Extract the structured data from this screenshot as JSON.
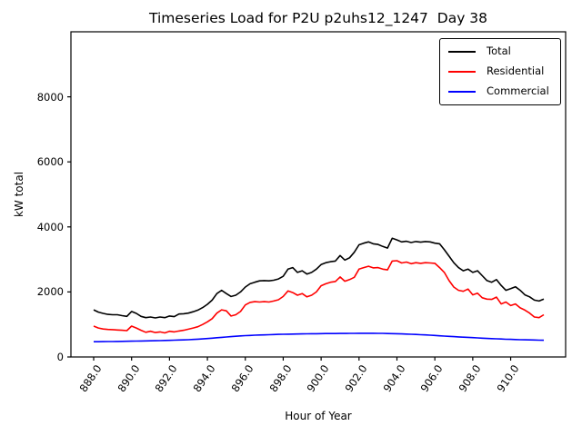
{
  "figure": {
    "background": "#ffffff"
  },
  "chart_data": {
    "type": "line",
    "title": "Timeseries Load for P2U p2uhs12_1247  Day 38",
    "xlabel": "Hour of Year",
    "ylabel": "kW total",
    "xlim": [
      886.8,
      912.9
    ],
    "ylim": [
      0,
      10000
    ],
    "grid": false,
    "xticks": {
      "values": [
        888,
        890,
        892,
        894,
        896,
        898,
        900,
        902,
        904,
        906,
        908,
        910
      ],
      "labels": [
        "888.0",
        "890.0",
        "892.0",
        "894.0",
        "896.0",
        "898.0",
        "900.0",
        "902.0",
        "904.0",
        "906.0",
        "908.0",
        "910.0"
      ],
      "rotation_deg": -56
    },
    "yticks": {
      "values": [
        0,
        2000,
        4000,
        6000,
        8000
      ],
      "labels": [
        "0",
        "2000",
        "4000",
        "6000",
        "8000"
      ]
    },
    "legend": {
      "position": "upper right",
      "frame": true
    },
    "x": [
      888,
      888.25,
      888.5,
      888.75,
      889,
      889.25,
      889.5,
      889.75,
      890,
      890.25,
      890.5,
      890.75,
      891,
      891.25,
      891.5,
      891.75,
      892,
      892.25,
      892.5,
      892.75,
      893,
      893.25,
      893.5,
      893.75,
      894,
      894.25,
      894.5,
      894.75,
      895,
      895.25,
      895.5,
      895.75,
      896,
      896.25,
      896.5,
      896.75,
      897,
      897.25,
      897.5,
      897.75,
      898,
      898.25,
      898.5,
      898.75,
      899,
      899.25,
      899.5,
      899.75,
      900,
      900.25,
      900.5,
      900.75,
      901,
      901.25,
      901.5,
      901.75,
      902,
      902.25,
      902.5,
      902.75,
      903,
      903.25,
      903.5,
      903.75,
      904,
      904.25,
      904.5,
      904.75,
      905,
      905.25,
      905.5,
      905.75,
      906,
      906.25,
      906.5,
      906.75,
      907,
      907.25,
      907.5,
      907.75,
      908,
      908.25,
      908.5,
      908.75,
      909,
      909.25,
      909.5,
      909.75,
      910,
      910.25,
      910.5,
      910.75,
      911,
      911.25,
      911.5,
      911.75
    ],
    "series": [
      {
        "name": "Total",
        "color": "#000000",
        "values": [
          1450,
          1380,
          1340,
          1310,
          1300,
          1300,
          1270,
          1250,
          1400,
          1340,
          1250,
          1210,
          1230,
          1200,
          1230,
          1210,
          1260,
          1240,
          1320,
          1330,
          1350,
          1390,
          1440,
          1520,
          1620,
          1750,
          1950,
          2050,
          1950,
          1860,
          1900,
          2000,
          2150,
          2250,
          2300,
          2340,
          2350,
          2340,
          2360,
          2400,
          2480,
          2700,
          2750,
          2600,
          2650,
          2550,
          2600,
          2700,
          2840,
          2900,
          2930,
          2950,
          3120,
          2980,
          3050,
          3220,
          3450,
          3500,
          3540,
          3480,
          3460,
          3400,
          3350,
          3650,
          3600,
          3540,
          3560,
          3520,
          3550,
          3530,
          3550,
          3540,
          3500,
          3480,
          3300,
          3100,
          2900,
          2750,
          2650,
          2700,
          2600,
          2650,
          2500,
          2350,
          2300,
          2380,
          2200,
          2050,
          2100,
          2160,
          2050,
          1910,
          1850,
          1750,
          1720,
          1780
        ]
      },
      {
        "name": "Residential",
        "color": "#ff0000",
        "values": [
          950,
          890,
          860,
          845,
          840,
          830,
          820,
          810,
          950,
          890,
          820,
          760,
          790,
          750,
          770,
          740,
          790,
          770,
          800,
          820,
          855,
          890,
          930,
          1000,
          1080,
          1180,
          1350,
          1450,
          1420,
          1260,
          1300,
          1400,
          1600,
          1680,
          1700,
          1690,
          1700,
          1690,
          1720,
          1760,
          1860,
          2030,
          1980,
          1900,
          1950,
          1850,
          1900,
          2000,
          2190,
          2250,
          2300,
          2320,
          2460,
          2330,
          2380,
          2450,
          2700,
          2750,
          2790,
          2740,
          2750,
          2700,
          2680,
          2950,
          2960,
          2890,
          2920,
          2870,
          2900,
          2880,
          2900,
          2890,
          2880,
          2750,
          2600,
          2350,
          2150,
          2050,
          2020,
          2090,
          1910,
          1960,
          1820,
          1780,
          1770,
          1840,
          1630,
          1690,
          1580,
          1630,
          1510,
          1440,
          1350,
          1230,
          1210,
          1300
        ]
      },
      {
        "name": "Commercial",
        "color": "#0000ff",
        "values": [
          470,
          470,
          472,
          474,
          476,
          478,
          480,
          483,
          486,
          489,
          492,
          495,
          498,
          501,
          504,
          508,
          512,
          516,
          521,
          526,
          532,
          539,
          547,
          556,
          566,
          578,
          591,
          603,
          615,
          626,
          637,
          647,
          656,
          663,
          669,
          675,
          680,
          685,
          690,
          695,
          699,
          702,
          705,
          708,
          710,
          712,
          714,
          716,
          718,
          720,
          721,
          722,
          723,
          724,
          726,
          727,
          728,
          729,
          730,
          729,
          727,
          725,
          722,
          719,
          715,
          710,
          704,
          698,
          692,
          685,
          678,
          670,
          661,
          652,
          643,
          634,
          626,
          618,
          610,
          602,
          594,
          586,
          578,
          571,
          564,
          558,
          552,
          546,
          541,
          536,
          532,
          528,
          524,
          521,
          518,
          515
        ]
      }
    ]
  }
}
